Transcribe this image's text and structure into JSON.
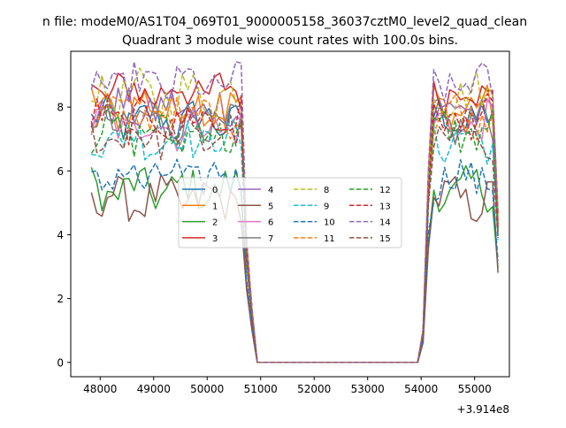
{
  "figure": {
    "suptitle": "n file: modeM0/AS1T04_069T01_9000005158_36037cztM0_level2_quad_clean",
    "title": "Quadrant 3 module wise count rates with 100.0s bins.",
    "x_offset_text": "+3.914e8"
  },
  "chart_data": {
    "type": "line",
    "title": "Quadrant 3 module wise count rates with 100.0s bins.",
    "xlabel": "",
    "ylabel": "",
    "x_offset": 391400000,
    "xlim": [
      47450,
      55650
    ],
    "ylim": [
      -0.45,
      9.75
    ],
    "x_ticks": [
      48000,
      49000,
      50000,
      51000,
      52000,
      53000,
      54000,
      55000
    ],
    "y_ticks": [
      0,
      2,
      4,
      6,
      8
    ],
    "x_tick_labels": [
      "48000",
      "49000",
      "50000",
      "51000",
      "52000",
      "53000",
      "54000",
      "55000"
    ],
    "y_tick_labels": [
      "0",
      "2",
      "4",
      "6",
      "8"
    ],
    "x_start": 47836,
    "bin_width": 100,
    "n_bins": 77,
    "gap": {
      "fall_start_bin": 28,
      "zero_from_bin": 31,
      "zero_to_bin": 61,
      "rise_end_bin": 64
    },
    "grid": false,
    "legend": {
      "placement": "center",
      "ncol": 4
    },
    "series": [
      {
        "name": "0",
        "color": "#1f77b4",
        "dash": "solid",
        "level": 7.6
      },
      {
        "name": "1",
        "color": "#ff7f0e",
        "dash": "solid",
        "level": 8.0
      },
      {
        "name": "2",
        "color": "#2ca02c",
        "dash": "solid",
        "level": 5.4
      },
      {
        "name": "3",
        "color": "#d62728",
        "dash": "solid",
        "level": 8.5
      },
      {
        "name": "4",
        "color": "#9467bd",
        "dash": "solid",
        "level": 7.9
      },
      {
        "name": "5",
        "color": "#8c564b",
        "dash": "solid",
        "level": 5.1
      },
      {
        "name": "6",
        "color": "#e377c2",
        "dash": "solid",
        "level": 7.4
      },
      {
        "name": "7",
        "color": "#7f7f7f",
        "dash": "solid",
        "level": 7.5
      },
      {
        "name": "8",
        "color": "#bcbd22",
        "dash": "dashed",
        "level": 8.4
      },
      {
        "name": "9",
        "color": "#17becf",
        "dash": "dashed",
        "level": 7.0
      },
      {
        "name": "10",
        "color": "#1f77b4",
        "dash": "dashed",
        "level": 5.8
      },
      {
        "name": "11",
        "color": "#ff7f0e",
        "dash": "dashed",
        "level": 7.8
      },
      {
        "name": "12",
        "color": "#2ca02c",
        "dash": "dashed",
        "level": 7.2
      },
      {
        "name": "13",
        "color": "#d62728",
        "dash": "dashed",
        "level": 7.6
      },
      {
        "name": "14",
        "color": "#9467bd",
        "dash": "dashed",
        "level": 8.7
      },
      {
        "name": "15",
        "color": "#8c564b",
        "dash": "dashed",
        "level": 7.1
      }
    ]
  }
}
